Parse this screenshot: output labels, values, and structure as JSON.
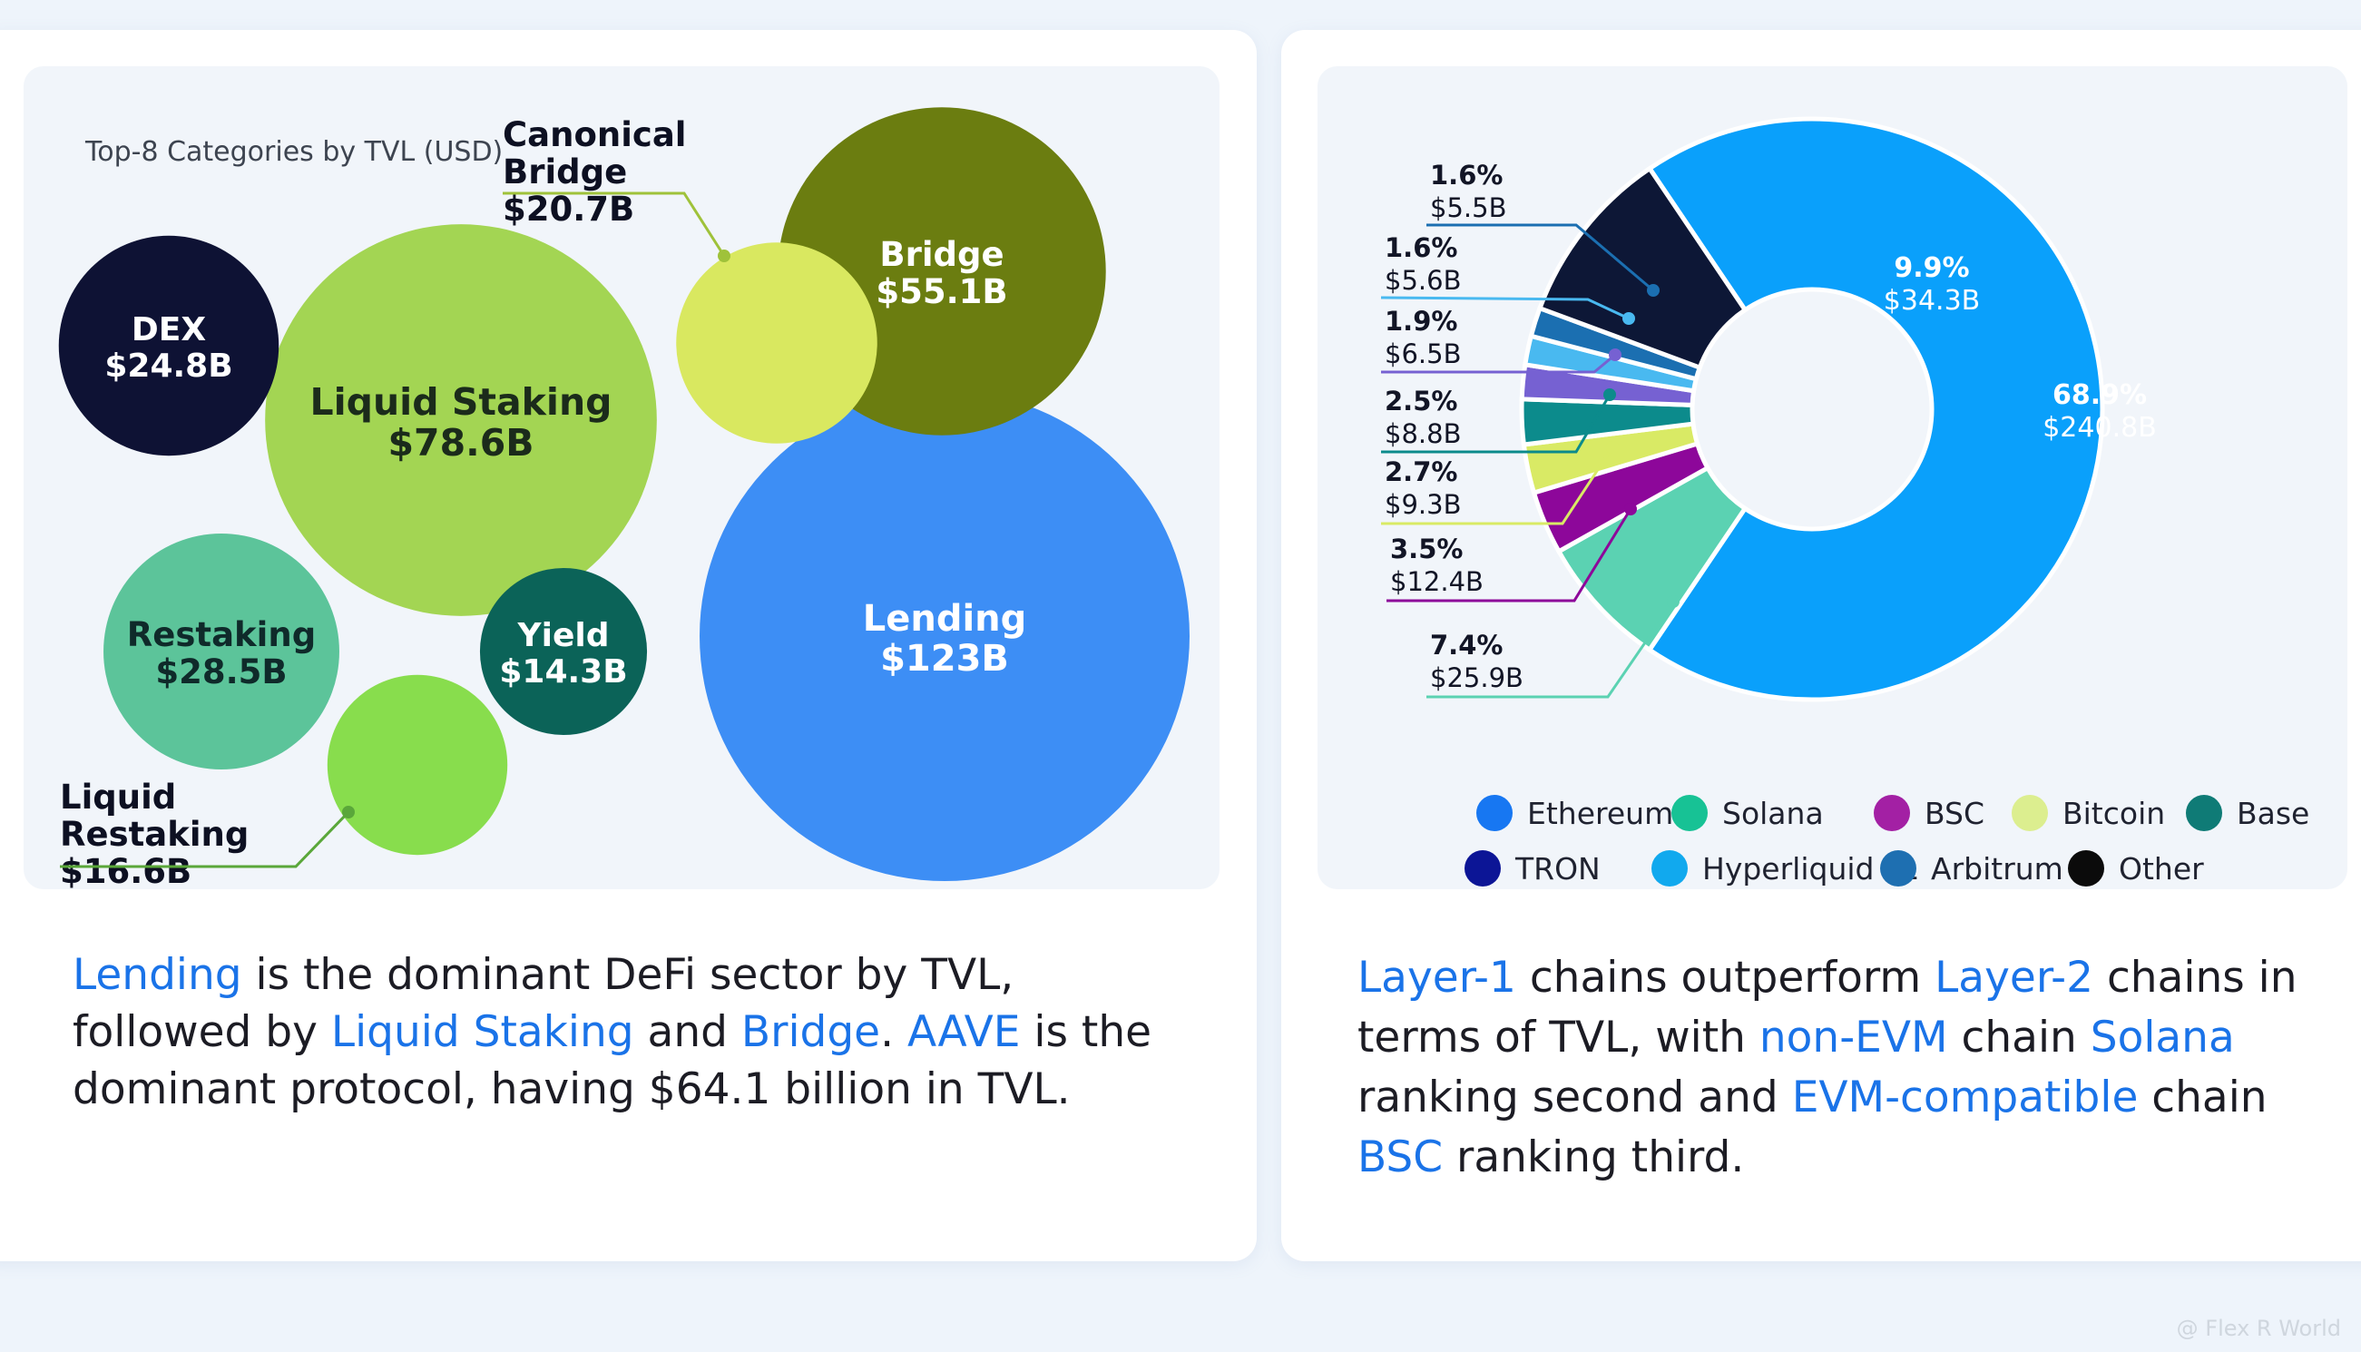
{
  "chart_data": [
    {
      "type": "bubble",
      "title": "Top-8 Categories by TVL (USD)",
      "categories": [
        "Lending",
        "Liquid Staking",
        "Bridge",
        "Restaking",
        "DEX",
        "Canonical Bridge",
        "Liquid Restaking",
        "Yield"
      ],
      "values": [
        123,
        78.6,
        55.1,
        28.5,
        24.8,
        20.7,
        16.6,
        14.3
      ],
      "value_labels": [
        "$123B",
        "$78.6B",
        "$55.1B",
        "$28.5B",
        "$24.8B",
        "$20.7B",
        "$16.6B",
        "$14.3B"
      ],
      "unit": "USD billions",
      "colors": [
        "#3d8ef5",
        "#a3d553",
        "#6b7d10",
        "#5cc49a",
        "#0e1234",
        "#d9e860",
        "#88dd4d",
        "#0b6358"
      ]
    },
    {
      "type": "pie",
      "style": "donut",
      "categories": [
        "Ethereum",
        "Solana",
        "BSC",
        "Bitcoin",
        "Base",
        "TRON",
        "Hyperliquid L1",
        "Arbitrum",
        "Other"
      ],
      "values": [
        68.9,
        7.4,
        3.5,
        2.7,
        2.5,
        1.9,
        1.6,
        1.6,
        9.9
      ],
      "percent_labels": [
        "68.9%",
        "7.4%",
        "3.5%",
        "2.7%",
        "2.5%",
        "1.9%",
        "1.6%",
        "1.6%",
        "9.9%"
      ],
      "value_labels": [
        "$240.8B",
        "$25.9B",
        "$12.4B",
        "$9.3B",
        "$8.8B",
        "$6.5B",
        "$5.6B",
        "$5.5B",
        "$34.3B"
      ],
      "slice_colors": [
        "#0aa0fb",
        "#5bd2b2",
        "#8d079a",
        "#d9ea65",
        "#0c8b8c",
        "#7661d2",
        "#49b9f0",
        "#1b6fb1",
        "#0d1736"
      ],
      "legend": [
        "Ethereum",
        "Solana",
        "BSC",
        "Bitcoin",
        "Base",
        "TRON",
        "Hyperliquid L1",
        "Arbitrum",
        "Other"
      ],
      "legend_colors": [
        "#1777f2",
        "#17c295",
        "#a320a4",
        "#dcee8f",
        "#0f7b76",
        "#0c1596",
        "#11a9ee",
        "#1e6fb1",
        "#0b0b0b"
      ],
      "legend_position": "bottom"
    }
  ],
  "captions": {
    "left": [
      {
        "text": "Lending",
        "hl": true
      },
      {
        "text": " is the dominant DeFi sector by TVL, followed by ",
        "hl": false
      },
      {
        "text": "Liquid Staking",
        "hl": true
      },
      {
        "text": " and ",
        "hl": false
      },
      {
        "text": "Bridge",
        "hl": true
      },
      {
        "text": ". ",
        "hl": false
      },
      {
        "text": "AAVE",
        "hl": true
      },
      {
        "text": " is the dominant protocol, having $64.1 billion in TVL.",
        "hl": false
      }
    ],
    "right": [
      {
        "text": "Layer-1",
        "hl": true
      },
      {
        "text": " chains outperform ",
        "hl": false
      },
      {
        "text": "Layer-2",
        "hl": true
      },
      {
        "text": " chains in terms of TVL, with ",
        "hl": false
      },
      {
        "text": "non-EVM",
        "hl": true
      },
      {
        "text": " chain ",
        "hl": false
      },
      {
        "text": "Solana",
        "hl": true
      },
      {
        "text": " ranking second and ",
        "hl": false
      },
      {
        "text": "EVM-compatible",
        "hl": true
      },
      {
        "text": " chain ",
        "hl": false
      },
      {
        "text": "BSC",
        "hl": true
      },
      {
        "text": " ranking third.",
        "hl": false
      }
    ]
  },
  "colors": {
    "highlight": "#1a73e8",
    "text": "#1c1c24"
  },
  "watermark": "@ Flex R World"
}
